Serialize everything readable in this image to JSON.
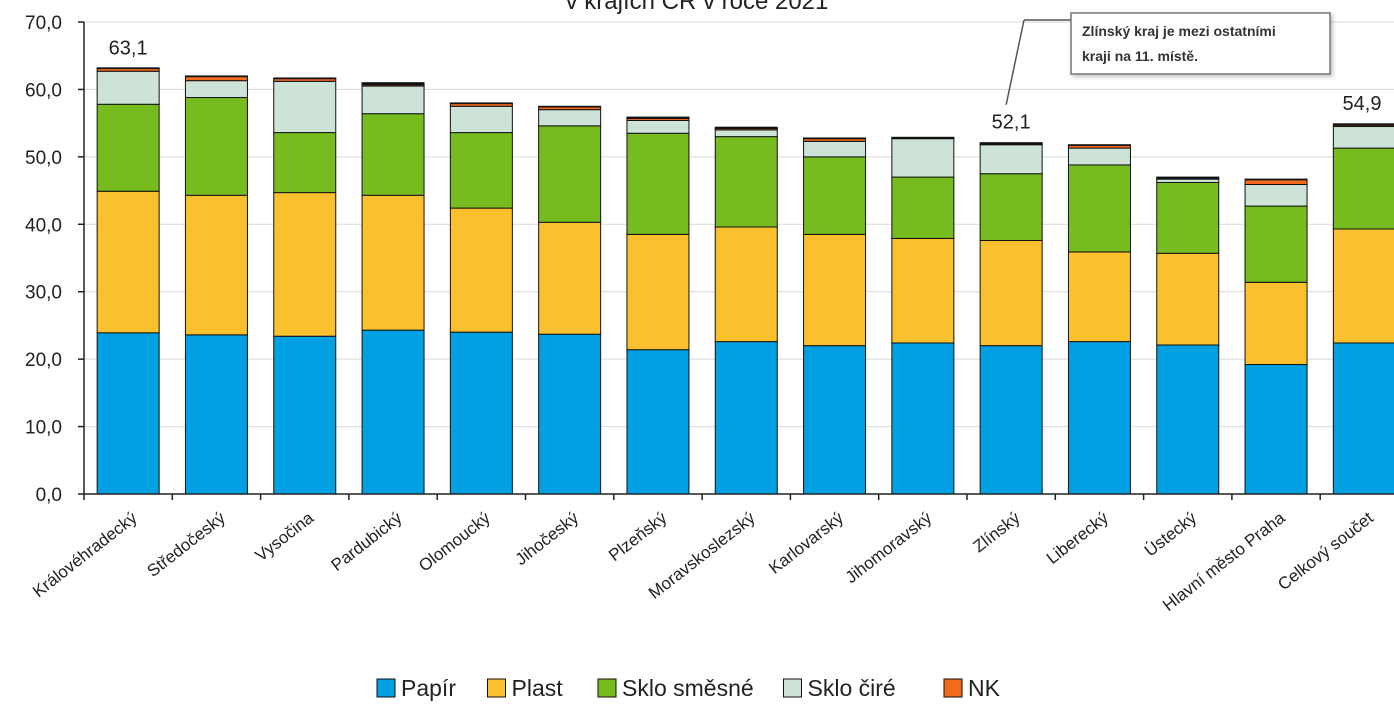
{
  "chart_data": {
    "type": "bar",
    "stacked": true,
    "title": "v krajích ČR v roce 2021",
    "ylim": [
      0,
      70
    ],
    "yticks": [
      "0,0",
      "10,0",
      "20,0",
      "30,0",
      "40,0",
      "50,0",
      "60,0",
      "70,0"
    ],
    "grid": true,
    "legend_position": "bottom",
    "categories": [
      "Královéhradecký",
      "Středočeský",
      "Vysočina",
      "Pardubický",
      "Olomoucký",
      "Jihočeský",
      "Plzeňský",
      "Moravskoslezský",
      "Karlovarský",
      "Jihomoravský",
      "Zlínský",
      "Liberecký",
      "Ústecký",
      "Hlavní město Praha",
      "Celkový součet"
    ],
    "series": [
      {
        "name": "Papír",
        "color": "#00A0E3",
        "values": [
          23.9,
          23.6,
          23.4,
          24.3,
          24.0,
          23.7,
          21.4,
          22.6,
          22.0,
          22.4,
          22.0,
          22.6,
          22.1,
          19.2,
          22.4
        ]
      },
      {
        "name": "Plast",
        "color": "#FBC02D",
        "values": [
          21.0,
          20.7,
          21.3,
          20.0,
          18.4,
          16.6,
          17.1,
          17.0,
          16.5,
          15.5,
          15.6,
          13.3,
          13.6,
          12.2,
          16.9
        ]
      },
      {
        "name": "Sklo směsné",
        "color": "#77BC1F",
        "values": [
          12.9,
          14.5,
          8.9,
          12.1,
          11.2,
          14.3,
          15.0,
          13.4,
          11.5,
          9.1,
          9.9,
          12.9,
          10.5,
          11.3,
          12.0
        ]
      },
      {
        "name": "Sklo čiré",
        "color": "#CDE3D7",
        "values": [
          4.9,
          2.5,
          7.6,
          4.1,
          3.9,
          2.4,
          1.9,
          1.0,
          2.3,
          5.7,
          4.3,
          2.5,
          0.5,
          3.2,
          3.2
        ]
      },
      {
        "name": "NK",
        "color": "#F26B1D",
        "values": [
          0.4,
          0.6,
          0.4,
          0.2,
          0.4,
          0.4,
          0.3,
          0.2,
          0.4,
          0.1,
          0.1,
          0.4,
          0.1,
          0.7,
          0.2
        ]
      },
      {
        "name": "",
        "color": "#111111",
        "values": [
          0.1,
          0.1,
          0.1,
          0.3,
          0.1,
          0.1,
          0.2,
          0.2,
          0.1,
          0.1,
          0.2,
          0.1,
          0.2,
          0.1,
          0.2
        ]
      }
    ],
    "data_labels": [
      {
        "category_index": 0,
        "text": "63,1",
        "value": 63.1
      },
      {
        "category_index": 10,
        "text": "52,1",
        "value": 52.1
      },
      {
        "category_index": 14,
        "text": "54,9",
        "value": 54.9
      }
    ],
    "annotation": {
      "line1": "Zlínský kraj je mezi ostatními",
      "line2": "kraji na 11. místě.",
      "target_category_index": 10
    }
  }
}
